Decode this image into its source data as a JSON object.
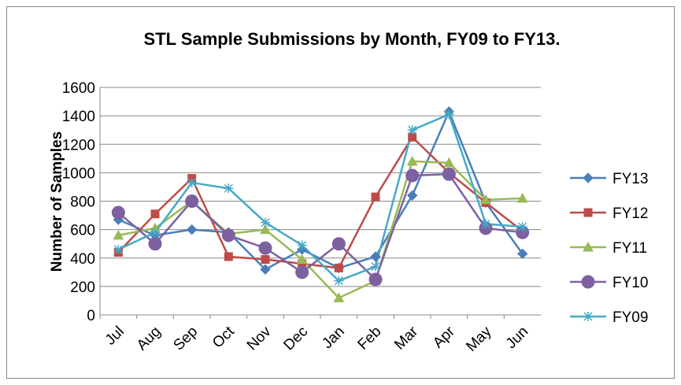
{
  "chart_data": {
    "type": "line",
    "title": "STL Sample Submissions by Month, FY09 to FY13.",
    "y_label": "Number of Samples",
    "categories": [
      "Jul",
      "Aug",
      "Sep",
      "Oct",
      "Nov",
      "Dec",
      "Jan",
      "Feb",
      "Mar",
      "Apr",
      "May",
      "Jun"
    ],
    "series": [
      {
        "name": "FY13",
        "color": "#4a7ebb",
        "marker": "diamond",
        "values": [
          670,
          560,
          600,
          580,
          320,
          460,
          330,
          410,
          840,
          1430,
          790,
          430
        ]
      },
      {
        "name": "FY12",
        "color": "#be4b48",
        "marker": "square",
        "values": [
          440,
          710,
          960,
          410,
          390,
          360,
          330,
          830,
          1250,
          1000,
          790,
          590
        ]
      },
      {
        "name": "FY11",
        "color": "#98b954",
        "marker": "triangle",
        "values": [
          560,
          610,
          800,
          570,
          600,
          390,
          120,
          240,
          1080,
          1070,
          810,
          820
        ]
      },
      {
        "name": "FY10",
        "color": "#7d60a0",
        "marker": "circle",
        "values": [
          720,
          500,
          800,
          560,
          470,
          300,
          500,
          250,
          980,
          990,
          610,
          580
        ]
      },
      {
        "name": "FY09",
        "color": "#46aac5",
        "marker": "star",
        "values": [
          460,
          580,
          930,
          890,
          650,
          490,
          240,
          340,
          1300,
          1410,
          640,
          620
        ]
      }
    ],
    "ylim": [
      0,
      1600
    ],
    "yticks": [
      0,
      200,
      400,
      600,
      800,
      1000,
      1200,
      1400,
      1600
    ],
    "grid": true,
    "legend": "right"
  }
}
